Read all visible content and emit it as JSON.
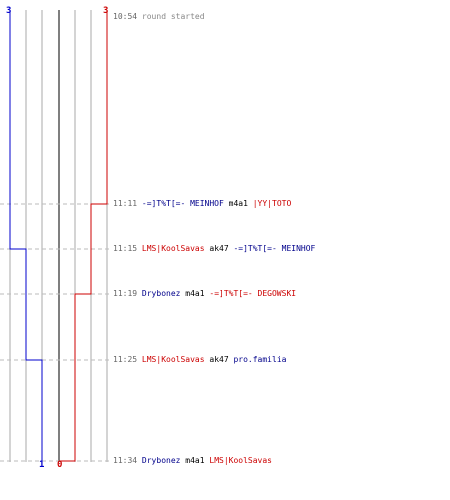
{
  "score": {
    "blue_start": "3",
    "red_start": "3",
    "blue_end": "1",
    "red_end": "0"
  },
  "colors": {
    "blue_team": "#0000cc",
    "red_team": "#cc0000",
    "grid": "#aaaaaa",
    "dashed": "#bbbbbb"
  },
  "events": [
    {
      "time": "10:54",
      "text": "round started"
    },
    {
      "time": "11:11",
      "killer": "-=]T%T[=- MEINHOF",
      "killer_team": "blue",
      "weapon": "m4a1",
      "victim": "|YY|TOTO",
      "victim_team": "red"
    },
    {
      "time": "11:15",
      "killer": "LMS|KoolSavas",
      "killer_team": "red",
      "weapon": "ak47",
      "victim": "-=]T%T[=- MEINHOF",
      "victim_team": "blue"
    },
    {
      "time": "11:19",
      "killer": "Drybonez",
      "killer_team": "blue",
      "weapon": "m4a1",
      "victim": "-=]T%T[=- DEGOWSKI",
      "victim_team": "red"
    },
    {
      "time": "11:25",
      "killer": "LMS|KoolSavas",
      "killer_team": "red",
      "weapon": "ak47",
      "victim": "pro.familia",
      "victim_team": "blue"
    },
    {
      "time": "11:34",
      "killer": "Drybonez",
      "killer_team": "blue",
      "weapon": "m4a1",
      "victim": "LMS|KoolSavas",
      "victim_team": "red"
    }
  ]
}
